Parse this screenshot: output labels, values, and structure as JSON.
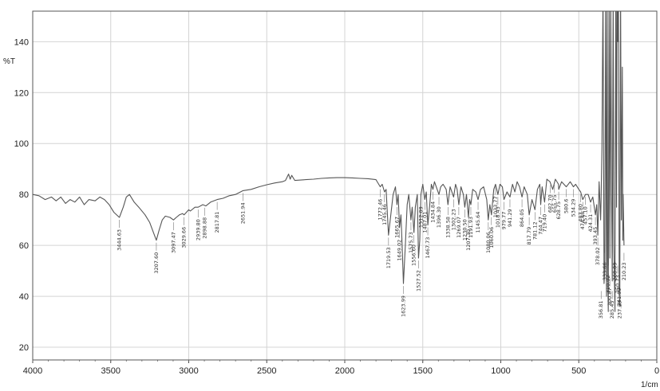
{
  "chart_data": {
    "type": "line",
    "ylabel": "%T",
    "xlabel": "1/cm",
    "xlim": [
      4000,
      0
    ],
    "ylim": [
      15,
      152
    ],
    "grid": true,
    "x_ticks": [
      "4000",
      "3500",
      "3000",
      "2500",
      "2000",
      "1500",
      "1000",
      "500",
      "0"
    ],
    "x_tick_values": [
      4000,
      3500,
      3000,
      2500,
      2000,
      1500,
      1000,
      500,
      0
    ],
    "y_ticks": [
      "20",
      "40",
      "60",
      "80",
      "100",
      "120",
      "140"
    ],
    "y_tick_values": [
      20,
      40,
      60,
      80,
      100,
      120,
      140
    ],
    "series": [
      {
        "color": "#555555",
        "points": [
          [
            4000,
            80
          ],
          [
            3960,
            79.5
          ],
          [
            3920,
            78
          ],
          [
            3880,
            79
          ],
          [
            3850,
            77.5
          ],
          [
            3820,
            79
          ],
          [
            3790,
            76.5
          ],
          [
            3760,
            78
          ],
          [
            3730,
            77
          ],
          [
            3700,
            79
          ],
          [
            3670,
            76
          ],
          [
            3640,
            78
          ],
          [
            3600,
            77.5
          ],
          [
            3570,
            79
          ],
          [
            3540,
            78
          ],
          [
            3510,
            76
          ],
          [
            3480,
            73
          ],
          [
            3444.63,
            71
          ],
          [
            3420,
            75
          ],
          [
            3400,
            79
          ],
          [
            3380,
            80
          ],
          [
            3350,
            77
          ],
          [
            3320,
            75
          ],
          [
            3280,
            72
          ],
          [
            3250,
            69
          ],
          [
            3220,
            64
          ],
          [
            3207.6,
            62
          ],
          [
            3190,
            66
          ],
          [
            3170,
            70
          ],
          [
            3150,
            71.5
          ],
          [
            3120,
            71
          ],
          [
            3097.47,
            70
          ],
          [
            3080,
            71
          ],
          [
            3060,
            72
          ],
          [
            3040,
            72.5
          ],
          [
            3029.66,
            72
          ],
          [
            3000,
            74
          ],
          [
            2990,
            73.5
          ],
          [
            2960,
            75
          ],
          [
            2939.8,
            75
          ],
          [
            2910,
            76
          ],
          [
            2890,
            75.5
          ],
          [
            2860,
            77
          ],
          [
            2817.81,
            78
          ],
          [
            2780,
            78.5
          ],
          [
            2740,
            79.5
          ],
          [
            2700,
            80
          ],
          [
            2651.94,
            81.5
          ],
          [
            2600,
            82
          ],
          [
            2550,
            83
          ],
          [
            2500,
            83.8
          ],
          [
            2450,
            84.5
          ],
          [
            2400,
            85
          ],
          [
            2380,
            85.5
          ],
          [
            2360,
            88
          ],
          [
            2350,
            86
          ],
          [
            2340,
            87.5
          ],
          [
            2320,
            85.5
          ],
          [
            2250,
            85.8
          ],
          [
            2200,
            86
          ],
          [
            2150,
            86.3
          ],
          [
            2100,
            86.5
          ],
          [
            2050,
            86.6
          ],
          [
            2000,
            86.6
          ],
          [
            1950,
            86.5
          ],
          [
            1900,
            86.3
          ],
          [
            1850,
            86.2
          ],
          [
            1800,
            85.8
          ],
          [
            1772.46,
            83
          ],
          [
            1760,
            84
          ],
          [
            1745.46,
            81
          ],
          [
            1735,
            82
          ],
          [
            1719.53,
            64
          ],
          [
            1705,
            72
          ],
          [
            1690,
            80
          ],
          [
            1675,
            83
          ],
          [
            1665.67,
            76
          ],
          [
            1658,
            80
          ],
          [
            1649.02,
            67
          ],
          [
            1640,
            72
          ],
          [
            1632,
            60
          ],
          [
            1623.99,
            45
          ],
          [
            1612,
            60
          ],
          [
            1600,
            76
          ],
          [
            1590,
            80
          ],
          [
            1575.73,
            70
          ],
          [
            1568,
            75
          ],
          [
            1556.6,
            65
          ],
          [
            1548,
            75
          ],
          [
            1535,
            80
          ],
          [
            1527.52,
            55
          ],
          [
            1519,
            62
          ],
          [
            1512.09,
            80
          ],
          [
            1500,
            84
          ],
          [
            1487.01,
            78
          ],
          [
            1478,
            81
          ],
          [
            1467.73,
            68
          ],
          [
            1455,
            76
          ],
          [
            1445,
            84
          ],
          [
            1434.84,
            82
          ],
          [
            1425,
            85
          ],
          [
            1396.3,
            80
          ],
          [
            1385,
            83
          ],
          [
            1370,
            84
          ],
          [
            1350,
            82
          ],
          [
            1338.58,
            76
          ],
          [
            1325,
            83
          ],
          [
            1302.23,
            79
          ],
          [
            1290,
            84
          ],
          [
            1280,
            82
          ],
          [
            1269.07,
            76
          ],
          [
            1255,
            83
          ],
          [
            1240,
            80
          ],
          [
            1230.5,
            75
          ],
          [
            1220,
            80
          ],
          [
            1207.3,
            71
          ],
          [
            1200,
            78
          ],
          [
            1191.93,
            76
          ],
          [
            1180,
            82
          ],
          [
            1160,
            81
          ],
          [
            1145.64,
            78
          ],
          [
            1130,
            82
          ],
          [
            1110,
            83
          ],
          [
            1090,
            78
          ],
          [
            1080.06,
            70
          ],
          [
            1070,
            76
          ],
          [
            1060,
            72
          ],
          [
            1045,
            82
          ],
          [
            1033.77,
            84
          ],
          [
            1018.43,
            80
          ],
          [
            1005,
            84
          ],
          [
            990,
            83
          ],
          [
            979.77,
            78
          ],
          [
            960,
            81
          ],
          [
            941.29,
            79
          ],
          [
            925,
            84
          ],
          [
            910,
            81
          ],
          [
            895,
            85
          ],
          [
            880,
            83
          ],
          [
            864.05,
            79
          ],
          [
            850,
            83
          ],
          [
            830,
            80
          ],
          [
            817.79,
            72
          ],
          [
            800,
            78
          ],
          [
            781.12,
            74
          ],
          [
            765,
            82
          ],
          [
            750,
            84
          ],
          [
            744.47,
            76
          ],
          [
            735,
            83
          ],
          [
            719.4,
            77
          ],
          [
            705,
            86
          ],
          [
            685,
            85
          ],
          [
            666.79,
            82
          ],
          [
            650,
            86
          ],
          [
            630,
            84
          ],
          [
            628.75,
            82
          ],
          [
            610,
            85
          ],
          [
            580,
            83
          ],
          [
            555,
            85
          ],
          [
            534.29,
            83
          ],
          [
            520,
            84
          ],
          [
            500,
            82
          ],
          [
            487.8,
            81
          ],
          [
            474.48,
            78
          ],
          [
            457.1,
            80
          ],
          [
            440,
            80
          ],
          [
            424.31,
            77
          ],
          [
            410,
            79
          ],
          [
            393.45,
            72
          ],
          [
            385,
            76
          ],
          [
            378.02,
            64
          ],
          [
            370,
            85
          ],
          [
            360,
            70
          ],
          [
            356.81,
            78
          ],
          [
            352,
            98
          ],
          [
            345,
            160
          ],
          [
            338,
            45
          ],
          [
            333.66,
            50
          ],
          [
            328,
            160
          ],
          [
            322,
            40
          ],
          [
            318,
            155
          ],
          [
            315,
            55
          ],
          [
            310.92,
            34
          ],
          [
            306,
            160
          ],
          [
            300.87,
            55
          ],
          [
            295,
            160
          ],
          [
            290,
            80
          ],
          [
            285.45,
            46
          ],
          [
            280,
            160
          ],
          [
            275,
            60
          ],
          [
            268.09,
            34
          ],
          [
            263,
            160
          ],
          [
            258,
            75
          ],
          [
            255,
            160
          ],
          [
            250.73,
            140
          ],
          [
            246,
            160
          ],
          [
            241.09,
            41
          ],
          [
            237.23,
            36
          ],
          [
            232,
            160
          ],
          [
            227,
            70
          ],
          [
            221,
            130
          ],
          [
            218,
            62
          ],
          [
            216,
            80
          ],
          [
            210.23,
            60
          ]
        ]
      }
    ],
    "peak_labels": [
      {
        "x": 3444.63,
        "label": "3444.63"
      },
      {
        "x": 3207.6,
        "label": "3207.60"
      },
      {
        "x": 3097.47,
        "label": "3097.47"
      },
      {
        "x": 3029.66,
        "label": "3029.66"
      },
      {
        "x": 2939.8,
        "label": "2939.80"
      },
      {
        "x": 2898.88,
        "label": "2898.88"
      },
      {
        "x": 2817.81,
        "label": "2817.81"
      },
      {
        "x": 2651.94,
        "label": "2651.94"
      },
      {
        "x": 1772.46,
        "label": "1772.46"
      },
      {
        "x": 1745.46,
        "label": "1745.46"
      },
      {
        "x": 1719.53,
        "label": "1719.53"
      },
      {
        "x": 1665.67,
        "label": "1665.67"
      },
      {
        "x": 1649.02,
        "label": "1649.02"
      },
      {
        "x": 1623.99,
        "label": "1623.99"
      },
      {
        "x": 1575.73,
        "label": "1575.73"
      },
      {
        "x": 1556.6,
        "label": "1556.60"
      },
      {
        "x": 1527.52,
        "label": "1527.52"
      },
      {
        "x": 1512.09,
        "label": "1512.09"
      },
      {
        "x": 1487.01,
        "label": "1487.01"
      },
      {
        "x": 1467.73,
        "label": "1467.73"
      },
      {
        "x": 1434.84,
        "label": "1434.84"
      },
      {
        "x": 1396.3,
        "label": "1396.30"
      },
      {
        "x": 1338.58,
        "label": "1338.58"
      },
      {
        "x": 1302.23,
        "label": "1302.23"
      },
      {
        "x": 1269.07,
        "label": "1269.07"
      },
      {
        "x": 1230.5,
        "label": "1230.50"
      },
      {
        "x": 1207.3,
        "label": "1207.30"
      },
      {
        "x": 1191.93,
        "label": "1191.93"
      },
      {
        "x": 1145.64,
        "label": "1145.64"
      },
      {
        "x": 1080.06,
        "label": "1080.06"
      },
      {
        "x": 1060.06,
        "label": "1060.06"
      },
      {
        "x": 1033.77,
        "label": "1033.77"
      },
      {
        "x": 1018.43,
        "label": "1018.43"
      },
      {
        "x": 979.77,
        "label": "979.77"
      },
      {
        "x": 941.29,
        "label": "941.29"
      },
      {
        "x": 864.05,
        "label": "864.05"
      },
      {
        "x": 817.79,
        "label": "817.79"
      },
      {
        "x": 781.12,
        "label": "781.12"
      },
      {
        "x": 744.47,
        "label": "744.47"
      },
      {
        "x": 719.4,
        "label": "719.40"
      },
      {
        "x": 682.7,
        "label": "682.70"
      },
      {
        "x": 655.75,
        "label": "655.75"
      },
      {
        "x": 628.75,
        "label": "628.75"
      },
      {
        "x": 580.6,
        "label": "580.6"
      },
      {
        "x": 534.29,
        "label": "534.29"
      },
      {
        "x": 487.8,
        "label": "487.80"
      },
      {
        "x": 474.48,
        "label": "474.48"
      },
      {
        "x": 457.1,
        "label": "457.10"
      },
      {
        "x": 424.31,
        "label": "424.31"
      },
      {
        "x": 393.45,
        "label": "393.45"
      },
      {
        "x": 378.02,
        "label": "378.02"
      },
      {
        "x": 356.81,
        "label": "356.81"
      },
      {
        "x": 333.66,
        "label": "333.66"
      },
      {
        "x": 310.92,
        "label": "310.92"
      },
      {
        "x": 300.87,
        "label": "300.87"
      },
      {
        "x": 285.45,
        "label": "285.45"
      },
      {
        "x": 268.09,
        "label": "268.09"
      },
      {
        "x": 250.73,
        "label": "250.73"
      },
      {
        "x": 241.09,
        "label": "241.09"
      },
      {
        "x": 237.23,
        "label": "237.23"
      },
      {
        "x": 210.23,
        "label": "210.23"
      }
    ]
  }
}
